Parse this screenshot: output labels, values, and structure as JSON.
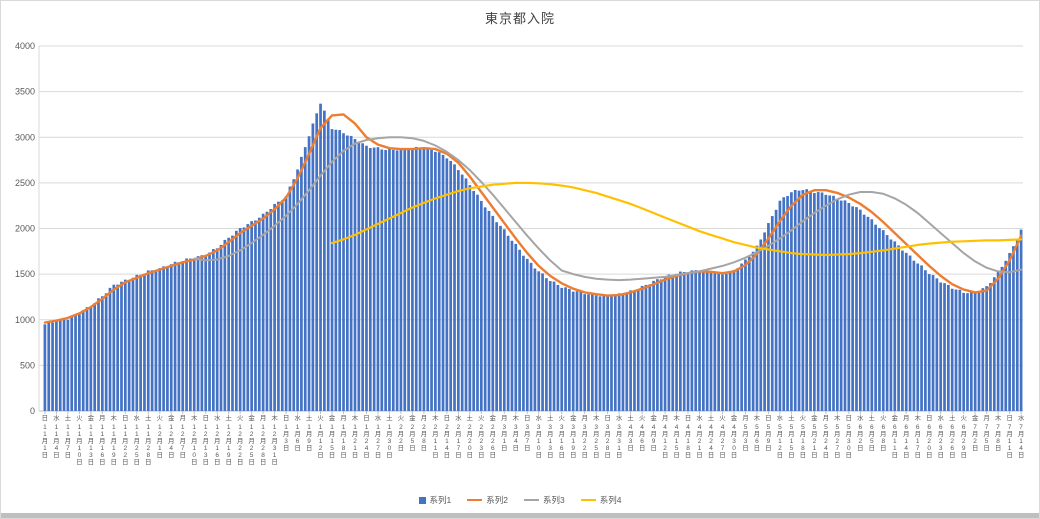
{
  "chart_data": {
    "type": "bar",
    "title": "東京都入院",
    "ylim": [
      0,
      4000
    ],
    "y_step": 500,
    "y_ticks": [
      "0",
      "500",
      "1000",
      "1500",
      "2000",
      "2500",
      "3000",
      "3500",
      "4000"
    ],
    "grid": true,
    "legend_position": "bottom",
    "sample_interval_days": 3,
    "x_labels": [
      [
        "日",
        11,
        1
      ],
      [
        "水",
        11,
        4
      ],
      [
        "土",
        11,
        7
      ],
      [
        "火",
        11,
        10
      ],
      [
        "金",
        11,
        13
      ],
      [
        "月",
        11,
        16
      ],
      [
        "木",
        11,
        19
      ],
      [
        "日",
        11,
        22
      ],
      [
        "水",
        11,
        25
      ],
      [
        "土",
        11,
        28
      ],
      [
        "火",
        12,
        1
      ],
      [
        "金",
        12,
        4
      ],
      [
        "月",
        12,
        7
      ],
      [
        "木",
        12,
        10
      ],
      [
        "日",
        12,
        13
      ],
      [
        "水",
        12,
        16
      ],
      [
        "土",
        12,
        19
      ],
      [
        "火",
        12,
        22
      ],
      [
        "金",
        12,
        25
      ],
      [
        "月",
        12,
        28
      ],
      [
        "木",
        12,
        31
      ],
      [
        "日",
        1,
        3
      ],
      [
        "水",
        1,
        6
      ],
      [
        "土",
        1,
        9
      ],
      [
        "火",
        1,
        12
      ],
      [
        "金",
        1,
        15
      ],
      [
        "月",
        1,
        18
      ],
      [
        "木",
        1,
        21
      ],
      [
        "日",
        1,
        24
      ],
      [
        "水",
        1,
        27
      ],
      [
        "土",
        1,
        30
      ],
      [
        "火",
        2,
        2
      ],
      [
        "金",
        2,
        5
      ],
      [
        "月",
        2,
        8
      ],
      [
        "木",
        2,
        11
      ],
      [
        "日",
        2,
        14
      ],
      [
        "水",
        2,
        17
      ],
      [
        "土",
        2,
        20
      ],
      [
        "火",
        2,
        23
      ],
      [
        "金",
        2,
        26
      ],
      [
        "月",
        3,
        1
      ],
      [
        "木",
        3,
        4
      ],
      [
        "日",
        3,
        7
      ],
      [
        "水",
        3,
        10
      ],
      [
        "土",
        3,
        13
      ],
      [
        "火",
        3,
        16
      ],
      [
        "金",
        3,
        19
      ],
      [
        "月",
        3,
        22
      ],
      [
        "木",
        3,
        25
      ],
      [
        "日",
        3,
        28
      ],
      [
        "水",
        3,
        31
      ],
      [
        "土",
        4,
        3
      ],
      [
        "火",
        4,
        6
      ],
      [
        "金",
        4,
        9
      ],
      [
        "月",
        4,
        12
      ],
      [
        "木",
        4,
        15
      ],
      [
        "日",
        4,
        18
      ],
      [
        "水",
        4,
        21
      ],
      [
        "土",
        4,
        24
      ],
      [
        "火",
        4,
        27
      ],
      [
        "金",
        4,
        30
      ],
      [
        "月",
        5,
        3
      ],
      [
        "木",
        5,
        6
      ],
      [
        "日",
        5,
        9
      ],
      [
        "水",
        5,
        12
      ],
      [
        "土",
        5,
        15
      ],
      [
        "火",
        5,
        18
      ],
      [
        "金",
        5,
        21
      ],
      [
        "月",
        5,
        24
      ],
      [
        "木",
        5,
        27
      ],
      [
        "日",
        5,
        30
      ],
      [
        "水",
        6,
        2
      ],
      [
        "土",
        6,
        5
      ],
      [
        "火",
        6,
        8
      ],
      [
        "金",
        6,
        11
      ],
      [
        "月",
        6,
        14
      ],
      [
        "木",
        6,
        17
      ],
      [
        "日",
        6,
        20
      ],
      [
        "水",
        6,
        23
      ],
      [
        "土",
        6,
        26
      ],
      [
        "火",
        6,
        29
      ],
      [
        "金",
        7,
        2
      ],
      [
        "月",
        7,
        5
      ],
      [
        "木",
        7,
        8
      ],
      [
        "日",
        7,
        11
      ],
      [
        "水",
        7,
        14
      ]
    ],
    "series": [
      {
        "name": "系列1",
        "type": "bar",
        "color": "#4472C4",
        "values": [
          950,
          990,
          1010,
          1080,
          1150,
          1260,
          1380,
          1430,
          1480,
          1530,
          1560,
          1610,
          1650,
          1680,
          1710,
          1790,
          1900,
          2000,
          2070,
          2150,
          2260,
          2350,
          2650,
          3020,
          3380,
          3100,
          3050,
          2980,
          2900,
          2880,
          2860,
          2870,
          2880,
          2890,
          2850,
          2780,
          2650,
          2480,
          2300,
          2130,
          1980,
          1820,
          1660,
          1530,
          1430,
          1360,
          1320,
          1290,
          1270,
          1260,
          1280,
          1310,
          1360,
          1420,
          1470,
          1510,
          1530,
          1540,
          1520,
          1500,
          1540,
          1650,
          1800,
          2050,
          2300,
          2400,
          2430,
          2400,
          2380,
          2330,
          2280,
          2200,
          2090,
          1970,
          1850,
          1730,
          1620,
          1510,
          1420,
          1350,
          1300,
          1300,
          1360,
          1520,
          1720,
          1980
        ]
      },
      {
        "name": "系列2",
        "type": "line",
        "color": "#ED7D31",
        "values": [
          970,
          990,
          1020,
          1070,
          1140,
          1230,
          1330,
          1410,
          1460,
          1510,
          1550,
          1590,
          1630,
          1660,
          1700,
          1760,
          1850,
          1950,
          2030,
          2110,
          2210,
          2340,
          2550,
          2820,
          3100,
          3240,
          3250,
          3150,
          3000,
          2920,
          2880,
          2870,
          2870,
          2880,
          2870,
          2820,
          2720,
          2570,
          2400,
          2230,
          2060,
          1890,
          1730,
          1590,
          1480,
          1400,
          1340,
          1300,
          1280,
          1265,
          1270,
          1300,
          1340,
          1390,
          1440,
          1480,
          1510,
          1530,
          1525,
          1510,
          1530,
          1600,
          1720,
          1890,
          2080,
          2250,
          2370,
          2420,
          2420,
          2390,
          2340,
          2270,
          2180,
          2070,
          1950,
          1830,
          1710,
          1590,
          1480,
          1390,
          1330,
          1300,
          1320,
          1450,
          1650,
          1920
        ]
      },
      {
        "name": "系列3",
        "type": "line",
        "color": "#A5A5A5",
        "values": [
          null,
          null,
          null,
          null,
          null,
          null,
          null,
          null,
          null,
          null,
          null,
          null,
          null,
          1670,
          1650,
          1660,
          1700,
          1760,
          1840,
          1930,
          2030,
          2140,
          2270,
          2420,
          2580,
          2730,
          2850,
          2930,
          2970,
          2990,
          3000,
          3000,
          2990,
          2960,
          2910,
          2840,
          2750,
          2640,
          2510,
          2370,
          2220,
          2070,
          1920,
          1780,
          1650,
          1540,
          1500,
          1470,
          1450,
          1440,
          1435,
          1440,
          1450,
          1460,
          1470,
          1490,
          1510,
          1530,
          1560,
          1590,
          1630,
          1680,
          1740,
          1810,
          1890,
          1980,
          2080,
          2170,
          2250,
          2320,
          2370,
          2400,
          2400,
          2380,
          2330,
          2260,
          2170,
          2060,
          1950,
          1840,
          1730,
          1640,
          1570,
          1530,
          1520,
          1550
        ]
      },
      {
        "name": "系列4",
        "type": "line",
        "color": "#FFC000",
        "values": [
          null,
          null,
          null,
          null,
          null,
          null,
          null,
          null,
          null,
          null,
          null,
          null,
          null,
          null,
          null,
          null,
          null,
          null,
          null,
          null,
          null,
          null,
          null,
          null,
          null,
          1840,
          1880,
          1930,
          1990,
          2050,
          2110,
          2170,
          2230,
          2280,
          2330,
          2370,
          2410,
          2440,
          2460,
          2480,
          2490,
          2500,
          2500,
          2495,
          2485,
          2470,
          2450,
          2420,
          2390,
          2350,
          2310,
          2270,
          2220,
          2170,
          2120,
          2070,
          2020,
          1970,
          1930,
          1890,
          1850,
          1820,
          1790,
          1770,
          1750,
          1730,
          1720,
          1715,
          1710,
          1715,
          1720,
          1730,
          1745,
          1760,
          1780,
          1800,
          1820,
          1835,
          1845,
          1855,
          1860,
          1865,
          1870,
          1870,
          1875,
          1880
        ]
      }
    ]
  },
  "legend": [
    {
      "label": "系列1",
      "type": "bar"
    },
    {
      "label": "系列2",
      "type": "line"
    },
    {
      "label": "系列3",
      "type": "line"
    },
    {
      "label": "系列4",
      "type": "line"
    }
  ],
  "colors": {
    "series1": "#4472C4",
    "series2": "#ED7D31",
    "series3": "#A5A5A5",
    "series4": "#FFC000",
    "gridline": "#D9D9D9",
    "axis_line": "#BFBFBF",
    "axis_text": "#595959"
  }
}
